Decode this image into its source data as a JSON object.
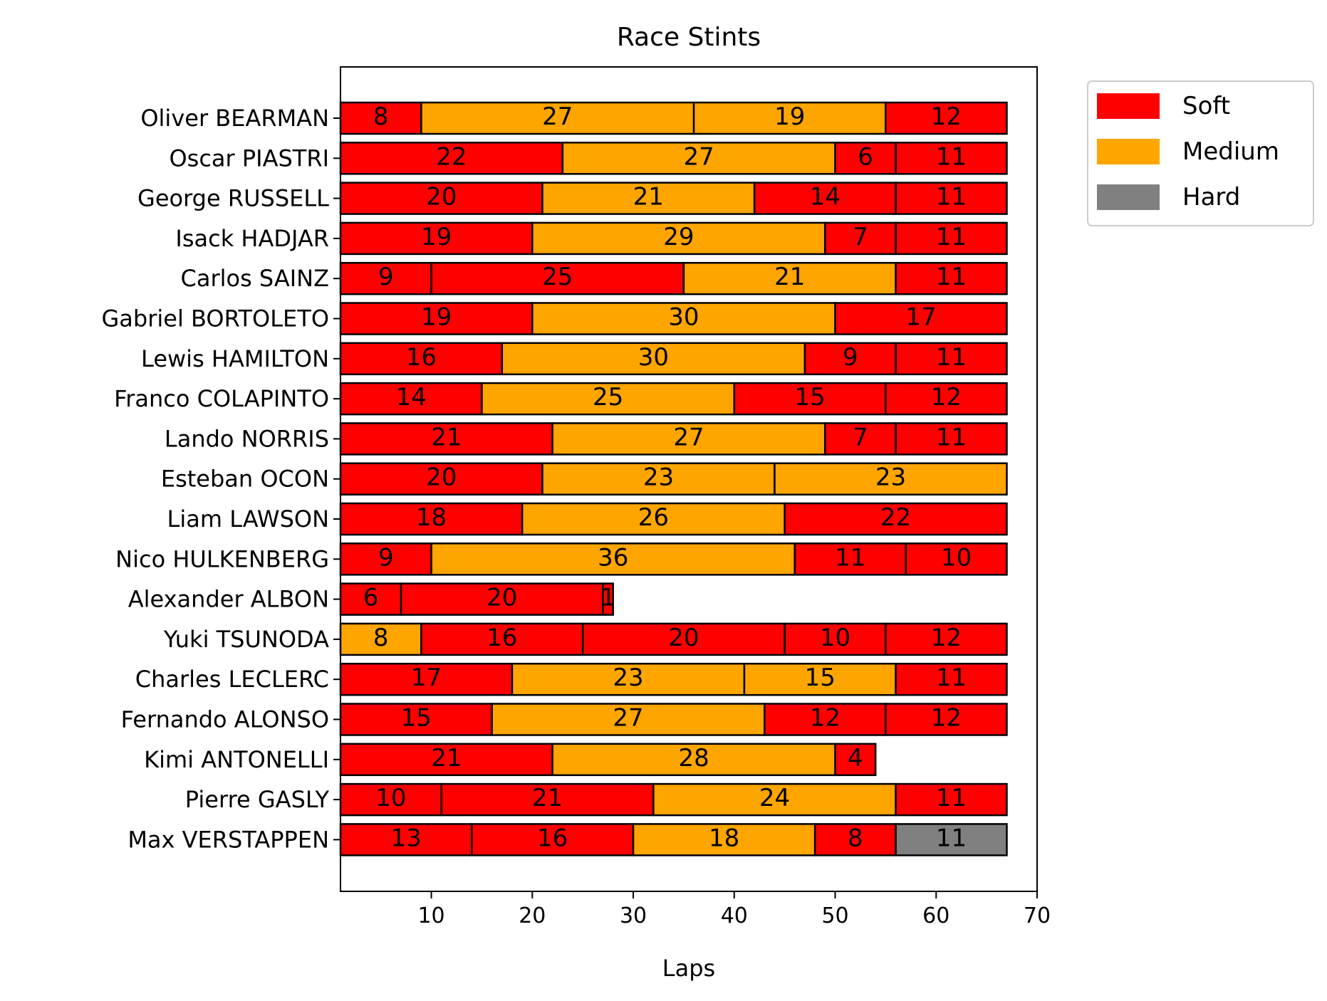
{
  "chart_data": {
    "type": "bar",
    "orientation": "horizontal",
    "stacked": true,
    "title": "Race Stints",
    "xlabel": "Laps",
    "ylabel": "",
    "xlim": [
      1,
      70
    ],
    "xticks": [
      10,
      20,
      30,
      40,
      50,
      60,
      70
    ],
    "grid": false,
    "legend": {
      "position": "outside-top-right",
      "entries": [
        {
          "name": "Soft",
          "color": "#ff0000"
        },
        {
          "name": "Medium",
          "color": "#ffa500"
        },
        {
          "name": "Hard",
          "color": "#808080"
        }
      ]
    },
    "compound_colors": {
      "SOFT": "#ff0000",
      "MEDIUM": "#ffa500",
      "HARD": "#808080"
    },
    "drivers": [
      {
        "name": "Oliver BEARMAN",
        "stints": [
          {
            "compound": "SOFT",
            "laps": 8
          },
          {
            "compound": "MEDIUM",
            "laps": 27
          },
          {
            "compound": "MEDIUM",
            "laps": 19
          },
          {
            "compound": "SOFT",
            "laps": 12
          }
        ]
      },
      {
        "name": "Oscar PIASTRI",
        "stints": [
          {
            "compound": "SOFT",
            "laps": 22
          },
          {
            "compound": "MEDIUM",
            "laps": 27
          },
          {
            "compound": "SOFT",
            "laps": 6
          },
          {
            "compound": "SOFT",
            "laps": 11
          }
        ]
      },
      {
        "name": "George RUSSELL",
        "stints": [
          {
            "compound": "SOFT",
            "laps": 20
          },
          {
            "compound": "MEDIUM",
            "laps": 21
          },
          {
            "compound": "SOFT",
            "laps": 14
          },
          {
            "compound": "SOFT",
            "laps": 11
          }
        ]
      },
      {
        "name": "Isack HADJAR",
        "stints": [
          {
            "compound": "SOFT",
            "laps": 19
          },
          {
            "compound": "MEDIUM",
            "laps": 29
          },
          {
            "compound": "SOFT",
            "laps": 7
          },
          {
            "compound": "SOFT",
            "laps": 11
          }
        ]
      },
      {
        "name": "Carlos SAINZ",
        "stints": [
          {
            "compound": "SOFT",
            "laps": 9
          },
          {
            "compound": "SOFT",
            "laps": 25
          },
          {
            "compound": "MEDIUM",
            "laps": 21
          },
          {
            "compound": "SOFT",
            "laps": 11
          }
        ]
      },
      {
        "name": "Gabriel BORTOLETO",
        "stints": [
          {
            "compound": "SOFT",
            "laps": 19
          },
          {
            "compound": "MEDIUM",
            "laps": 30
          },
          {
            "compound": "SOFT",
            "laps": 17
          }
        ]
      },
      {
        "name": "Lewis HAMILTON",
        "stints": [
          {
            "compound": "SOFT",
            "laps": 16
          },
          {
            "compound": "MEDIUM",
            "laps": 30
          },
          {
            "compound": "SOFT",
            "laps": 9
          },
          {
            "compound": "SOFT",
            "laps": 11
          }
        ]
      },
      {
        "name": "Franco COLAPINTO",
        "stints": [
          {
            "compound": "SOFT",
            "laps": 14
          },
          {
            "compound": "MEDIUM",
            "laps": 25
          },
          {
            "compound": "SOFT",
            "laps": 15
          },
          {
            "compound": "SOFT",
            "laps": 12
          }
        ]
      },
      {
        "name": "Lando NORRIS",
        "stints": [
          {
            "compound": "SOFT",
            "laps": 21
          },
          {
            "compound": "MEDIUM",
            "laps": 27
          },
          {
            "compound": "SOFT",
            "laps": 7
          },
          {
            "compound": "SOFT",
            "laps": 11
          }
        ]
      },
      {
        "name": "Esteban OCON",
        "stints": [
          {
            "compound": "SOFT",
            "laps": 20
          },
          {
            "compound": "MEDIUM",
            "laps": 23
          },
          {
            "compound": "MEDIUM",
            "laps": 23
          }
        ]
      },
      {
        "name": "Liam LAWSON",
        "stints": [
          {
            "compound": "SOFT",
            "laps": 18
          },
          {
            "compound": "MEDIUM",
            "laps": 26
          },
          {
            "compound": "SOFT",
            "laps": 22
          }
        ]
      },
      {
        "name": "Nico HULKENBERG",
        "stints": [
          {
            "compound": "SOFT",
            "laps": 9
          },
          {
            "compound": "MEDIUM",
            "laps": 36
          },
          {
            "compound": "SOFT",
            "laps": 11
          },
          {
            "compound": "SOFT",
            "laps": 10
          }
        ]
      },
      {
        "name": "Alexander ALBON",
        "stints": [
          {
            "compound": "SOFT",
            "laps": 6
          },
          {
            "compound": "SOFT",
            "laps": 20
          },
          {
            "compound": "SOFT",
            "laps": 1
          }
        ]
      },
      {
        "name": "Yuki TSUNODA",
        "stints": [
          {
            "compound": "MEDIUM",
            "laps": 8
          },
          {
            "compound": "SOFT",
            "laps": 16
          },
          {
            "compound": "SOFT",
            "laps": 20
          },
          {
            "compound": "SOFT",
            "laps": 10
          },
          {
            "compound": "SOFT",
            "laps": 12
          }
        ]
      },
      {
        "name": "Charles LECLERC",
        "stints": [
          {
            "compound": "SOFT",
            "laps": 17
          },
          {
            "compound": "MEDIUM",
            "laps": 23
          },
          {
            "compound": "MEDIUM",
            "laps": 15
          },
          {
            "compound": "SOFT",
            "laps": 11
          }
        ]
      },
      {
        "name": "Fernando ALONSO",
        "stints": [
          {
            "compound": "SOFT",
            "laps": 15
          },
          {
            "compound": "MEDIUM",
            "laps": 27
          },
          {
            "compound": "SOFT",
            "laps": 12
          },
          {
            "compound": "SOFT",
            "laps": 12
          }
        ]
      },
      {
        "name": "Kimi ANTONELLI",
        "stints": [
          {
            "compound": "SOFT",
            "laps": 21
          },
          {
            "compound": "MEDIUM",
            "laps": 28
          },
          {
            "compound": "SOFT",
            "laps": 4
          }
        ]
      },
      {
        "name": "Pierre GASLY",
        "stints": [
          {
            "compound": "SOFT",
            "laps": 10
          },
          {
            "compound": "SOFT",
            "laps": 21
          },
          {
            "compound": "MEDIUM",
            "laps": 24
          },
          {
            "compound": "SOFT",
            "laps": 11
          }
        ]
      },
      {
        "name": "Max VERSTAPPEN",
        "stints": [
          {
            "compound": "SOFT",
            "laps": 13
          },
          {
            "compound": "SOFT",
            "laps": 16
          },
          {
            "compound": "MEDIUM",
            "laps": 18
          },
          {
            "compound": "SOFT",
            "laps": 8
          },
          {
            "compound": "HARD",
            "laps": 11
          }
        ]
      }
    ]
  }
}
